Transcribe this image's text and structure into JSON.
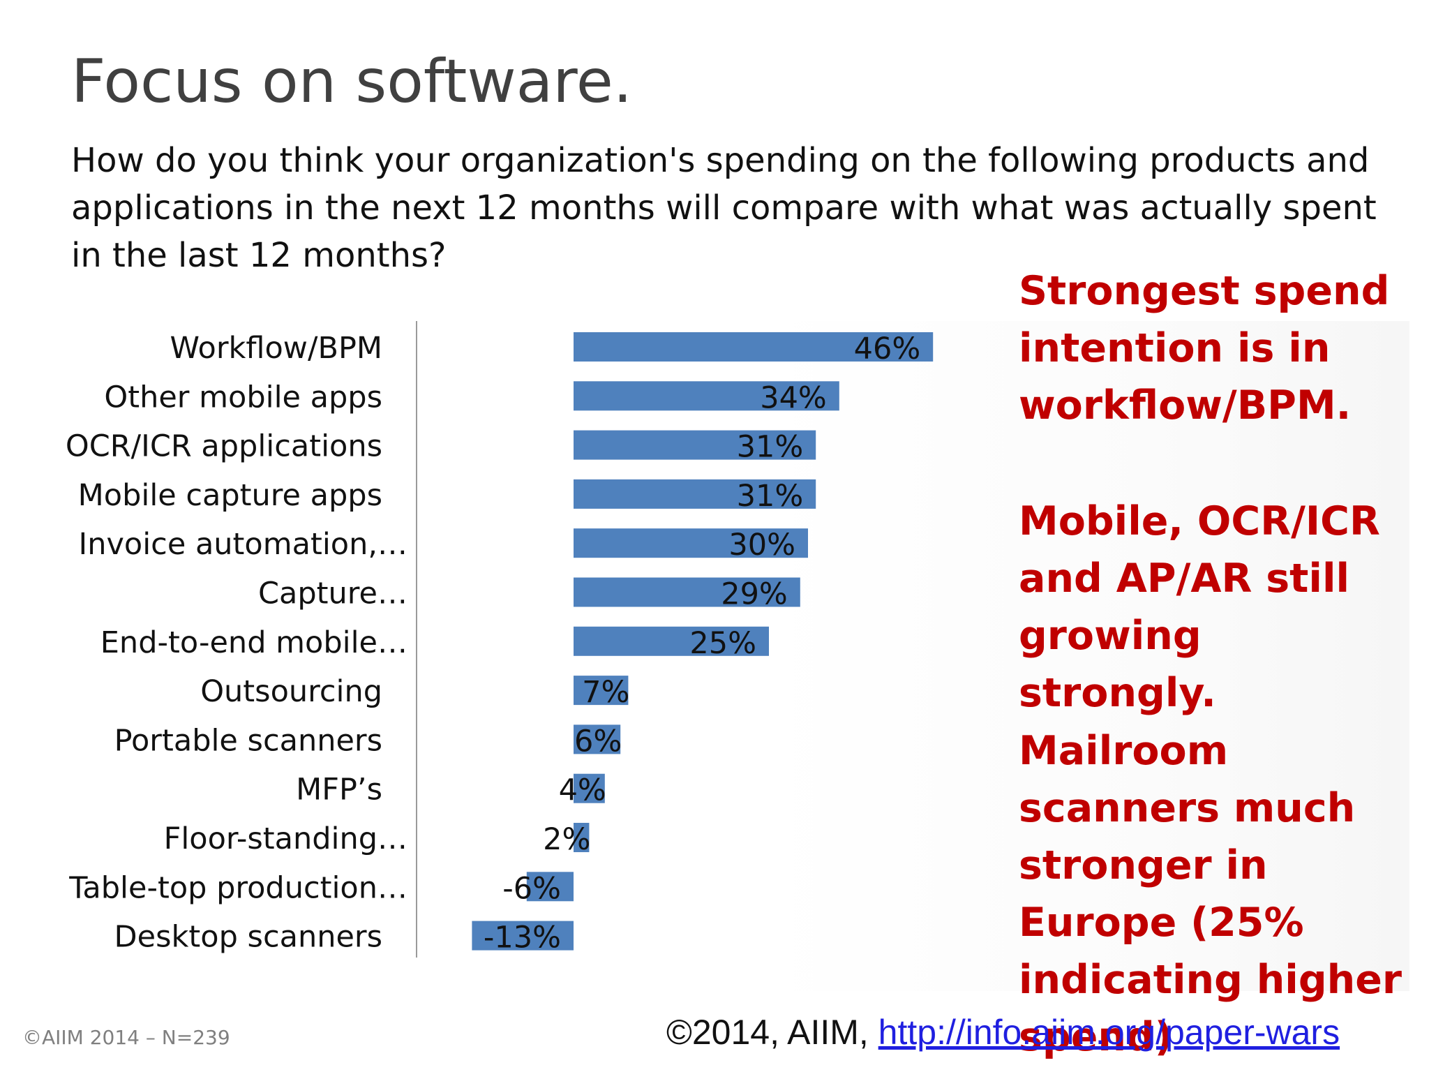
{
  "slide": {
    "title": "Focus on software.",
    "question": "How do you think your organization's spending on the following products and applications in the next 12 months will compare with what was actually spent in the last 12 months?"
  },
  "callouts": {
    "first": "Strongest spend intention is in workflow/BPM.",
    "second": "Mobile, OCR/ICR and AP/AR still growing strongly.",
    "third": "Mailroom scanners much stronger in Europe (25% indicating higher spend)"
  },
  "footer": {
    "left": "©AIIM 2014 – N=239",
    "right_prefix": "©2014, AIIM, ",
    "right_link": "http://info.aiim.org/paper-wars"
  },
  "colors": {
    "bar": "#4f81bd",
    "callout": "#c00000",
    "title": "#404040"
  },
  "chart_data": {
    "type": "bar",
    "orientation": "horizontal",
    "categories": [
      "Workflow/BPM",
      "Other mobile apps",
      "OCR/ICR applications",
      "Mobile capture apps",
      "Invoice automation,…",
      "Capture…",
      "End-to-end mobile…",
      "Outsourcing",
      "Portable scanners",
      "MFP’s",
      "Floor-standing…",
      "Table-top production…",
      "Desktop scanners"
    ],
    "values": [
      46,
      34,
      31,
      31,
      30,
      29,
      25,
      7,
      6,
      4,
      2,
      -6,
      -13
    ],
    "data_labels": [
      "46%",
      "34%",
      "31%",
      "31%",
      "30%",
      "29%",
      "25%",
      "7%",
      "6%",
      "4%",
      "2%",
      "-6%",
      "-13%"
    ],
    "xlim": [
      -20,
      55
    ],
    "grid": false,
    "legend": "none"
  }
}
